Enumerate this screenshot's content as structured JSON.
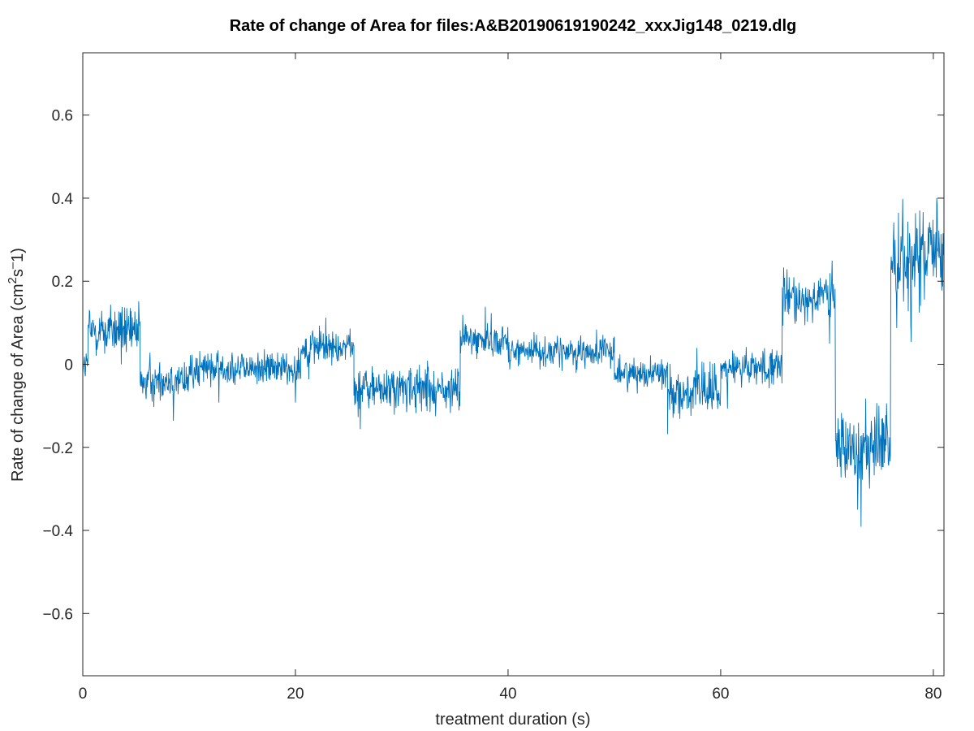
{
  "chart_data": {
    "type": "line",
    "title": "Rate of change of Area for files:A&B20190619190242_xxxJig148_0219.dlg",
    "xlabel": "treatment duration (s)",
    "ylabel": {
      "main": "Rate of change of Area (cm",
      "sup1": "2",
      "mid": "s",
      "sup2": "–",
      "end": "1)"
    },
    "xlim": [
      0,
      81
    ],
    "ylim": [
      -0.75,
      0.75
    ],
    "x_ticks": [
      0,
      20,
      40,
      60,
      80
    ],
    "x_tick_labels": [
      "0",
      "20",
      "40",
      "60",
      "80"
    ],
    "y_ticks": [
      -0.6,
      -0.4,
      -0.2,
      0,
      0.2,
      0.4,
      0.6
    ],
    "y_tick_labels": [
      "−0.6",
      "−0.4",
      "−0.2",
      "0",
      "0.2",
      "0.4",
      "0.6"
    ],
    "grid": false,
    "line_color": "#0072bd",
    "segments": [
      {
        "x_start": 0.0,
        "x_end": 0.5,
        "mean": 0.0,
        "noise": 0.03
      },
      {
        "x_start": 0.5,
        "x_end": 5.4,
        "mean": 0.08,
        "noise": 0.05
      },
      {
        "x_start": 5.4,
        "x_end": 10.0,
        "mean": -0.04,
        "noise": 0.04
      },
      {
        "x_start": 10.0,
        "x_end": 20.5,
        "mean": -0.01,
        "noise": 0.035
      },
      {
        "x_start": 20.5,
        "x_end": 25.5,
        "mean": 0.04,
        "noise": 0.035
      },
      {
        "x_start": 25.5,
        "x_end": 35.5,
        "mean": -0.06,
        "noise": 0.045
      },
      {
        "x_start": 35.5,
        "x_end": 40.0,
        "mean": 0.06,
        "noise": 0.035
      },
      {
        "x_start": 40.0,
        "x_end": 50.0,
        "mean": 0.03,
        "noise": 0.03
      },
      {
        "x_start": 50.0,
        "x_end": 55.0,
        "mean": -0.02,
        "noise": 0.03
      },
      {
        "x_start": 55.0,
        "x_end": 60.0,
        "mean": -0.07,
        "noise": 0.045
      },
      {
        "x_start": 60.0,
        "x_end": 65.8,
        "mean": -0.01,
        "noise": 0.035
      },
      {
        "x_start": 65.8,
        "x_end": 70.8,
        "mean": 0.16,
        "noise": 0.055
      },
      {
        "x_start": 70.8,
        "x_end": 76.0,
        "mean": -0.2,
        "noise": 0.08
      },
      {
        "x_start": 76.0,
        "x_end": 81.0,
        "mean": 0.25,
        "noise": 0.1
      }
    ]
  }
}
